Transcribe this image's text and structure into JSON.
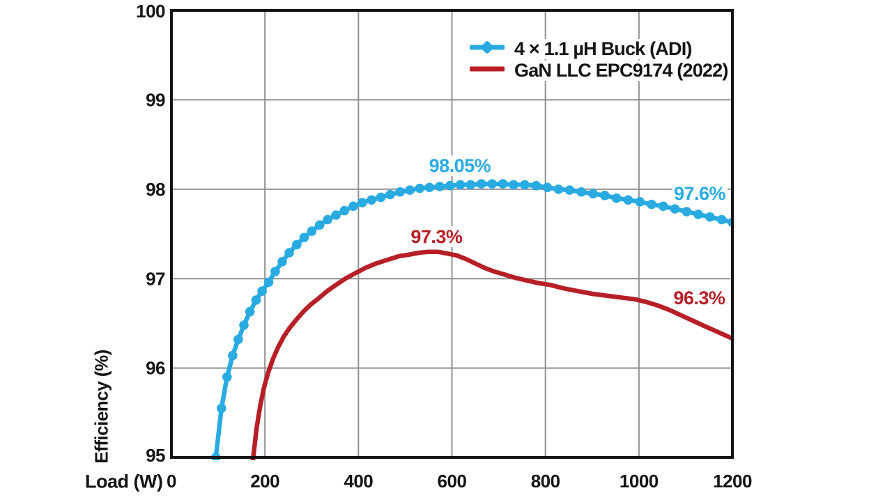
{
  "colors": {
    "background": "#ffffff",
    "grid": "#8f8f8f",
    "axis": "#141414",
    "text": "#141414",
    "buck_blue": "#29abe2",
    "llc_red": "#b71f27"
  },
  "chart_data": {
    "type": "line",
    "title": "",
    "xlabel": "Load (W)",
    "ylabel": "Efficiency (%)",
    "xlim": [
      0,
      1200
    ],
    "ylim": [
      95,
      100
    ],
    "x_ticks": [
      0,
      200,
      400,
      600,
      800,
      1000,
      1200
    ],
    "y_ticks": [
      95,
      96,
      97,
      98,
      99,
      100
    ],
    "grid": true,
    "legend": {
      "position": "top-right-inside",
      "entries": [
        {
          "label": "4 × 1.1 µH Buck (ADI)",
          "series": 0
        },
        {
          "label": "GaN LLC EPC9174 (2022)",
          "series": 1
        }
      ]
    },
    "series": [
      {
        "name": "4 × 1.1 µH Buck (ADI)",
        "color": "#29abe2",
        "marker": "circle",
        "line_width": 6.5,
        "points": [
          [
            90,
            94.55
          ],
          [
            95,
            95.0
          ],
          [
            107,
            95.55
          ],
          [
            119,
            95.9
          ],
          [
            131,
            96.14
          ],
          [
            143,
            96.32
          ],
          [
            155,
            96.48
          ],
          [
            168,
            96.63
          ],
          [
            181,
            96.76
          ],
          [
            194,
            96.86
          ],
          [
            208,
            96.96
          ],
          [
            222,
            97.08
          ],
          [
            237,
            97.19
          ],
          [
            252,
            97.29
          ],
          [
            268,
            97.38
          ],
          [
            284,
            97.46
          ],
          [
            300,
            97.53
          ],
          [
            317,
            97.6
          ],
          [
            334,
            97.66
          ],
          [
            352,
            97.71
          ],
          [
            370,
            97.76
          ],
          [
            389,
            97.81
          ],
          [
            408,
            97.85
          ],
          [
            428,
            97.88
          ],
          [
            448,
            97.91
          ],
          [
            468,
            97.94
          ],
          [
            489,
            97.97
          ],
          [
            510,
            97.99
          ],
          [
            531,
            98.01
          ],
          [
            552,
            98.02
          ],
          [
            574,
            98.03
          ],
          [
            596,
            98.04
          ],
          [
            618,
            98.05
          ],
          [
            640,
            98.05
          ],
          [
            663,
            98.06
          ],
          [
            686,
            98.06
          ],
          [
            709,
            98.06
          ],
          [
            732,
            98.05
          ],
          [
            756,
            98.05
          ],
          [
            780,
            98.04
          ],
          [
            804,
            98.02
          ],
          [
            828,
            98.0
          ],
          [
            852,
            97.99
          ],
          [
            877,
            97.97
          ],
          [
            902,
            97.95
          ],
          [
            927,
            97.93
          ],
          [
            952,
            97.9
          ],
          [
            977,
            97.88
          ],
          [
            1002,
            97.86
          ],
          [
            1027,
            97.83
          ],
          [
            1052,
            97.81
          ],
          [
            1077,
            97.78
          ],
          [
            1102,
            97.75
          ],
          [
            1127,
            97.72
          ],
          [
            1152,
            97.69
          ],
          [
            1177,
            97.66
          ],
          [
            1200,
            97.63
          ]
        ]
      },
      {
        "name": "GaN LLC EPC9174 (2022)",
        "color": "#b71f27",
        "marker": "none",
        "line_width": 6.5,
        "points": [
          [
            165,
            94.5
          ],
          [
            175,
            95.0
          ],
          [
            182,
            95.32
          ],
          [
            190,
            95.58
          ],
          [
            198,
            95.78
          ],
          [
            207,
            95.95
          ],
          [
            217,
            96.1
          ],
          [
            228,
            96.23
          ],
          [
            240,
            96.35
          ],
          [
            253,
            96.45
          ],
          [
            267,
            96.54
          ],
          [
            282,
            96.63
          ],
          [
            298,
            96.71
          ],
          [
            315,
            96.78
          ],
          [
            333,
            96.86
          ],
          [
            352,
            96.93
          ],
          [
            372,
            97.0
          ],
          [
            393,
            97.06
          ],
          [
            415,
            97.12
          ],
          [
            438,
            97.17
          ],
          [
            462,
            97.21
          ],
          [
            486,
            97.25
          ],
          [
            510,
            97.27
          ],
          [
            530,
            97.29
          ],
          [
            550,
            97.3
          ],
          [
            570,
            97.3
          ],
          [
            590,
            97.28
          ],
          [
            610,
            97.26
          ],
          [
            630,
            97.22
          ],
          [
            650,
            97.17
          ],
          [
            670,
            97.12
          ],
          [
            690,
            97.08
          ],
          [
            710,
            97.05
          ],
          [
            735,
            97.01
          ],
          [
            760,
            96.98
          ],
          [
            785,
            96.95
          ],
          [
            810,
            96.93
          ],
          [
            840,
            96.89
          ],
          [
            870,
            96.86
          ],
          [
            900,
            96.83
          ],
          [
            930,
            96.81
          ],
          [
            960,
            96.79
          ],
          [
            990,
            96.77
          ],
          [
            1015,
            96.74
          ],
          [
            1040,
            96.7
          ],
          [
            1065,
            96.65
          ],
          [
            1090,
            96.59
          ],
          [
            1115,
            96.53
          ],
          [
            1140,
            96.47
          ],
          [
            1170,
            96.4
          ],
          [
            1200,
            96.33
          ]
        ]
      }
    ],
    "annotations": [
      {
        "text": "98.05%",
        "series": 0,
        "x": 617,
        "y": 98.26
      },
      {
        "text": "97.6%",
        "series": 0,
        "x": 1130,
        "y": 97.95
      },
      {
        "text": "97.3%",
        "series": 1,
        "x": 567,
        "y": 97.47
      },
      {
        "text": "96.3%",
        "series": 1,
        "x": 1129,
        "y": 96.78
      }
    ]
  }
}
